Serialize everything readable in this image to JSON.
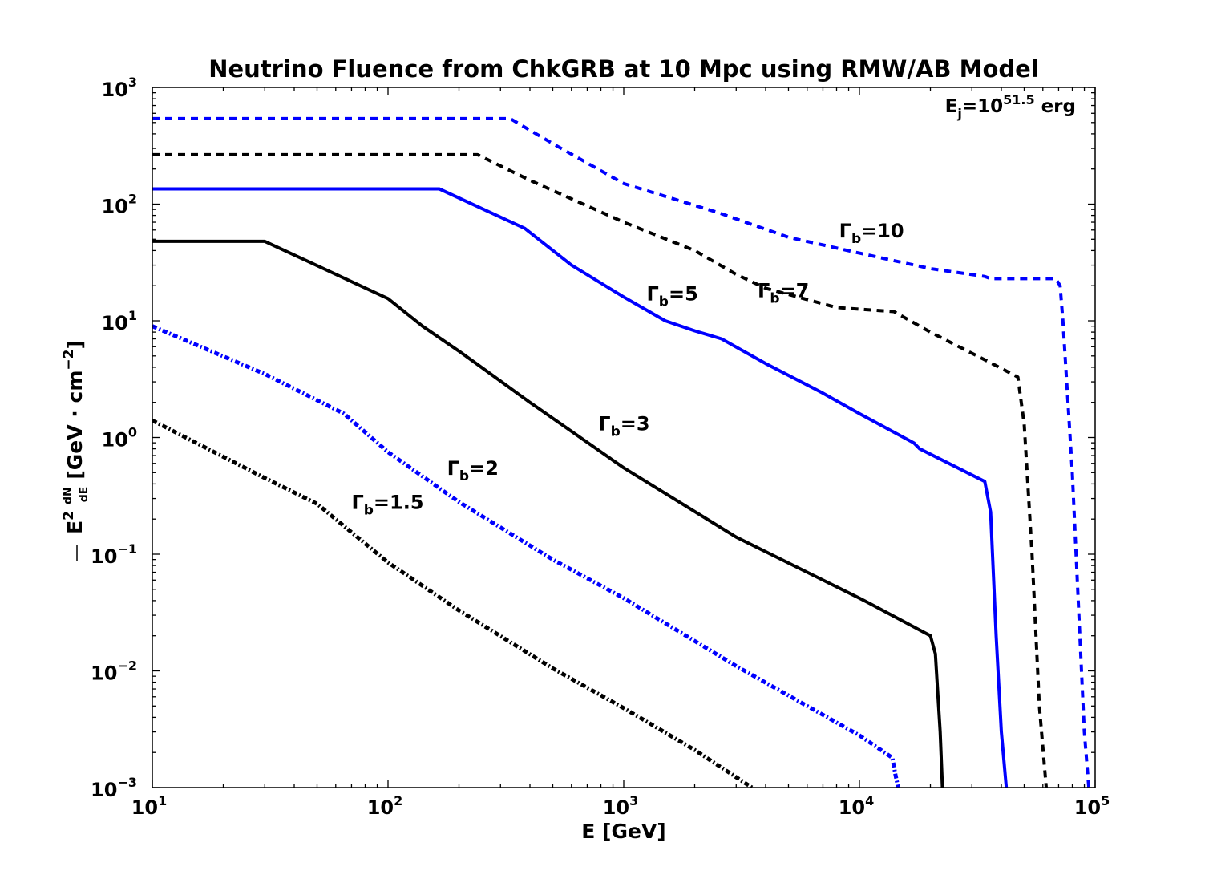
{
  "chart_data": {
    "type": "line",
    "title": "Neutrino Fluence from ChkGRB at 10 Mpc using RMW/AB Model",
    "xlabel": "E [GeV]",
    "ylabel": {
      "prefix": "E",
      "prefix_sup": "2",
      "frac_num": "dN",
      "frac_den": "dE",
      "bracket_open": "[GeV · cm",
      "bracket_sup": "−2",
      "bracket_close": "]"
    },
    "xscale": "log",
    "yscale": "log",
    "xlim": [
      10,
      100000
    ],
    "ylim": [
      0.001,
      1000
    ],
    "x_ticks": [
      {
        "value": 10,
        "base": "10",
        "exp": "1"
      },
      {
        "value": 100,
        "base": "10",
        "exp": "2"
      },
      {
        "value": 1000,
        "base": "10",
        "exp": "3"
      },
      {
        "value": 10000,
        "base": "10",
        "exp": "4"
      },
      {
        "value": 100000,
        "base": "10",
        "exp": "5"
      }
    ],
    "y_ticks": [
      {
        "value": 0.001,
        "base": "10",
        "exp": "−3"
      },
      {
        "value": 0.01,
        "base": "10",
        "exp": "−2"
      },
      {
        "value": 0.1,
        "base": "10",
        "exp": "−1"
      },
      {
        "value": 1,
        "base": "10",
        "exp": "0"
      },
      {
        "value": 10,
        "base": "10",
        "exp": "1"
      },
      {
        "value": 100,
        "base": "10",
        "exp": "2"
      },
      {
        "value": 1000,
        "base": "10",
        "exp": "3"
      }
    ],
    "grid": false,
    "annotation": {
      "base": "E",
      "sub": "j",
      "mid": "=10",
      "sup": "51.5",
      "tail": " erg"
    },
    "series": [
      {
        "name": "Γb=10",
        "label_main": "Γ",
        "label_sub": "b",
        "label_tail": "=10",
        "label_at": [
          8200,
          52
        ],
        "color": "#0000ff",
        "style": "dashed",
        "x": [
          10,
          330,
          500,
          1000,
          2500,
          5000,
          10000,
          20000,
          34000,
          36000,
          68000,
          71000,
          73000,
          80000,
          90000,
          94000
        ],
        "y": [
          540,
          540,
          330,
          150,
          85,
          52,
          38,
          28,
          24,
          23,
          23,
          20,
          10,
          0.5,
          0.003,
          0.001
        ]
      },
      {
        "name": "Γb=7",
        "label_main": "Γ",
        "label_sub": "b",
        "label_tail": "=7",
        "label_at": [
          3700,
          16
        ],
        "color": "#000000",
        "style": "dashed",
        "x": [
          10,
          240,
          400,
          1000,
          2000,
          3000,
          4000,
          8000,
          14000,
          20000,
          35000,
          47000,
          50000,
          54000,
          58000,
          62000
        ],
        "y": [
          265,
          265,
          160,
          70,
          40,
          25,
          19,
          13,
          12,
          8,
          4.5,
          3.3,
          1.3,
          0.1,
          0.005,
          0.001
        ]
      },
      {
        "name": "Γb=5",
        "label_main": "Γ",
        "label_sub": "b",
        "label_tail": "=5",
        "label_at": [
          1250,
          15
        ],
        "color": "#0000ff",
        "style": "solid",
        "x": [
          10,
          165,
          380,
          600,
          1000,
          1500,
          2000,
          2600,
          4000,
          7000,
          10000,
          17000,
          18000,
          34000,
          36000,
          38000,
          40000,
          42000
        ],
        "y": [
          135,
          135,
          62,
          30,
          16,
          10,
          8.2,
          7,
          4.3,
          2.4,
          1.6,
          0.9,
          0.8,
          0.42,
          0.23,
          0.02,
          0.003,
          0.001
        ]
      },
      {
        "name": "Γb=3",
        "label_main": "Γ",
        "label_sub": "b",
        "label_tail": "=3",
        "label_at": [
          780,
          1.15
        ],
        "color": "#000000",
        "style": "solid",
        "x": [
          10,
          30,
          100,
          140,
          200,
          400,
          1000,
          3000,
          10000,
          11000,
          20000,
          21000,
          22000,
          22500
        ],
        "y": [
          48,
          48,
          15.5,
          9,
          5.5,
          2,
          0.55,
          0.14,
          0.042,
          0.038,
          0.02,
          0.014,
          0.003,
          0.001
        ]
      },
      {
        "name": "Γb=2",
        "label_main": "Γ",
        "label_sub": "b",
        "label_tail": "=2",
        "label_at": [
          178,
          0.48
        ],
        "color": "#0000ff",
        "style": "dashdot",
        "x": [
          10,
          30,
          65,
          100,
          200,
          500,
          1000,
          3000,
          10000,
          13800,
          14200,
          14600
        ],
        "y": [
          9,
          3.5,
          1.6,
          0.75,
          0.28,
          0.09,
          0.042,
          0.011,
          0.0028,
          0.0018,
          0.0013,
          0.001
        ]
      },
      {
        "name": "Γb=1.5",
        "label_main": "Γ",
        "label_sub": "b",
        "label_tail": "=1.5",
        "label_at": [
          70,
          0.245
        ],
        "color": "#000000",
        "style": "dashdot",
        "x": [
          10,
          30,
          50,
          100,
          200,
          500,
          1000,
          2000,
          3500
        ],
        "y": [
          1.4,
          0.45,
          0.27,
          0.085,
          0.033,
          0.0105,
          0.0048,
          0.0021,
          0.001
        ]
      }
    ]
  }
}
